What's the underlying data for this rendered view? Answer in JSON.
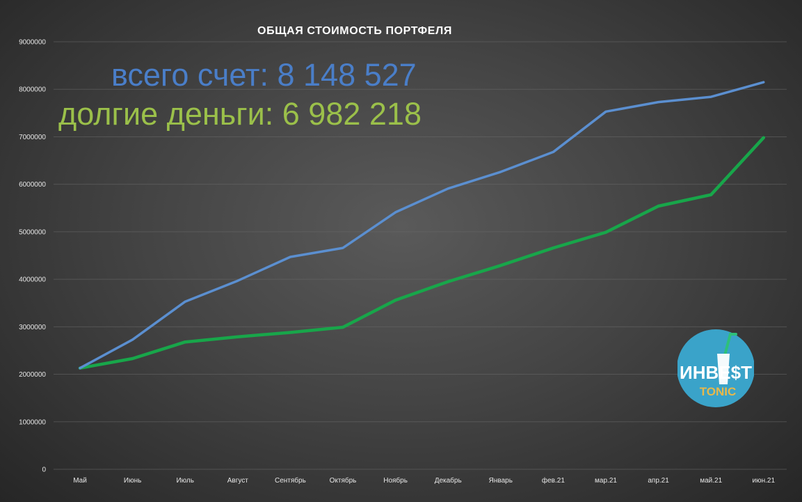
{
  "chart_data": {
    "type": "line",
    "title": "ОБЩАЯ СТОИМОСТЬ ПОРТФЕЛЯ",
    "categories": [
      "Май",
      "Июнь",
      "Июль",
      "Август",
      "Сентябрь",
      "Октябрь",
      "Ноябрь",
      "Декабрь",
      "Январь",
      "фев.21",
      "мар.21",
      "апр.21",
      "май.21",
      "июн.21"
    ],
    "y_ticks": [
      "0",
      "1000000",
      "2000000",
      "3000000",
      "4000000",
      "5000000",
      "6000000",
      "7000000",
      "8000000",
      "9000000"
    ],
    "ylim": [
      0,
      9000000
    ],
    "grid": true,
    "series": [
      {
        "color": "#5b8fd0",
        "values": [
          2130000,
          2730000,
          3530000,
          3970000,
          4470000,
          4660000,
          5410000,
          5910000,
          6260000,
          6680000,
          7530000,
          7730000,
          7840000,
          8148527
        ]
      },
      {
        "color": "#18a64a",
        "values": [
          2130000,
          2330000,
          2680000,
          2790000,
          2880000,
          2990000,
          3560000,
          3950000,
          4290000,
          4660000,
          4990000,
          5540000,
          5780000,
          6982218
        ]
      }
    ],
    "annotations": {
      "total_label": "всего счет: ",
      "total_value": "8 148 527",
      "long_label": "долгие деньги: ",
      "long_value": "6 982 218"
    }
  },
  "logo": {
    "line1": "ИНВЕ$Т",
    "line2": "TONIC",
    "colors": {
      "circle": "#3aa3c9",
      "text": "#ffffff",
      "accent": "#e8b84a",
      "straw": "#2ec07a"
    }
  }
}
